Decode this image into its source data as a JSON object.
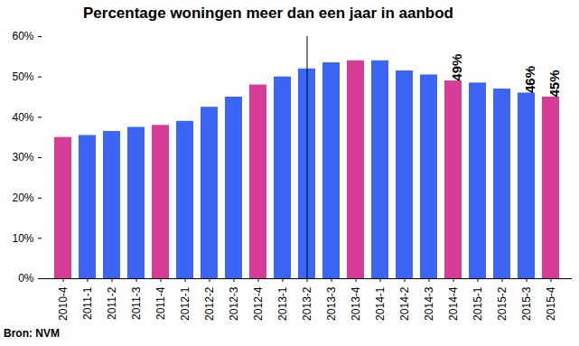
{
  "chart_data": {
    "type": "bar",
    "title": "Percentage woningen meer dan een jaar in aanbod",
    "caption": "Bron: NVM",
    "categories": [
      "2010-4",
      "2011-1",
      "2011-2",
      "2011-3",
      "2011-4",
      "2012-1",
      "2012-2",
      "2012-3",
      "2012-4",
      "2013-1",
      "2013-2",
      "2013-3",
      "2013-4",
      "2014-1",
      "2014-2",
      "2014-3",
      "2014-4",
      "2015-1",
      "2015-2",
      "2015-3",
      "2015-4"
    ],
    "values": [
      35,
      35.5,
      36.5,
      37.5,
      38,
      39,
      42.5,
      45,
      48,
      50,
      52,
      53.5,
      54,
      54,
      51.5,
      50.5,
      49,
      48.5,
      47,
      46,
      45
    ],
    "value_labels": [
      null,
      null,
      null,
      null,
      null,
      null,
      null,
      null,
      null,
      null,
      null,
      null,
      null,
      null,
      null,
      null,
      "49%",
      null,
      null,
      "46%",
      "45%"
    ],
    "colors": [
      "#d63c96",
      "#3b66f5",
      "#3b66f5",
      "#3b66f5",
      "#d63c96",
      "#3b66f5",
      "#3b66f5",
      "#3b66f5",
      "#d63c96",
      "#3b66f5",
      "#3b66f5",
      "#3b66f5",
      "#d63c96",
      "#3b66f5",
      "#3b66f5",
      "#3b66f5",
      "#d63c96",
      "#3b66f5",
      "#3b66f5",
      "#3b66f5",
      "#d63c96"
    ],
    "ylim": [
      0,
      60
    ],
    "yticks": [
      {
        "value": 0,
        "label": "0%"
      },
      {
        "value": 10,
        "label": "10%"
      },
      {
        "value": 20,
        "label": "20%"
      },
      {
        "value": 30,
        "label": "30%"
      },
      {
        "value": 40,
        "label": "40%"
      },
      {
        "value": 50,
        "label": "50%"
      },
      {
        "value": 60,
        "label": "60%"
      }
    ],
    "grid": false
  }
}
